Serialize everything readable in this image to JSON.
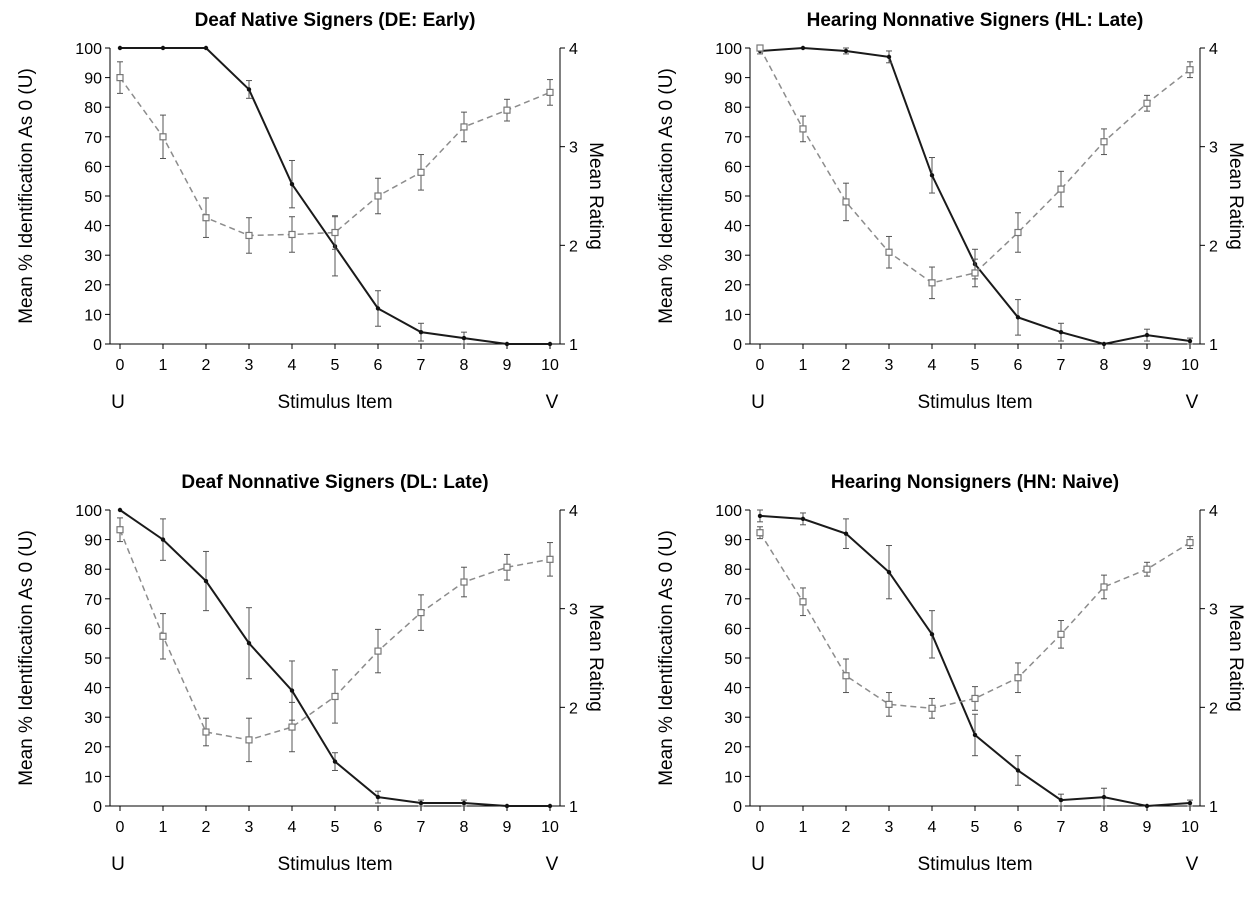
{
  "chart_data": [
    {
      "type": "line",
      "title": "Deaf Native Signers (DE: Early)",
      "xlabel": "Stimulus Item",
      "ylabel": "Mean % Identification As 0 (U)",
      "y2label": "Mean Rating",
      "x_end_labels": [
        "U",
        "V"
      ],
      "x": [
        0,
        1,
        2,
        3,
        4,
        5,
        6,
        7,
        8,
        9,
        10
      ],
      "ylim": [
        0,
        100
      ],
      "y2lim": [
        1,
        4
      ],
      "yticks": [
        0,
        10,
        20,
        30,
        40,
        50,
        60,
        70,
        80,
        90,
        100
      ],
      "y2ticks": [
        1,
        2,
        3,
        4
      ],
      "grid": false,
      "series": [
        {
          "style": "solid",
          "marker": "filled-circle",
          "axis": "left",
          "values": [
            100,
            100,
            100,
            86,
            54,
            33,
            12,
            4,
            2,
            0,
            0
          ],
          "err": [
            0,
            0,
            0,
            3,
            8,
            10,
            6,
            3,
            2,
            0,
            0
          ]
        },
        {
          "style": "dashed",
          "marker": "open-square",
          "axis": "right",
          "values": [
            3.7,
            3.1,
            2.28,
            2.1,
            2.11,
            2.13,
            2.5,
            2.74,
            3.2,
            3.37,
            3.55
          ],
          "err": [
            0.16,
            0.22,
            0.2,
            0.18,
            0.18,
            0.17,
            0.18,
            0.18,
            0.15,
            0.11,
            0.13
          ]
        }
      ]
    },
    {
      "type": "line",
      "title": "Hearing Nonnative Signers (HL: Late)",
      "xlabel": "Stimulus Item",
      "ylabel": "Mean % Identification As 0 (U)",
      "y2label": "Mean Rating",
      "x_end_labels": [
        "U",
        "V"
      ],
      "x": [
        0,
        1,
        2,
        3,
        4,
        5,
        6,
        7,
        8,
        9,
        10
      ],
      "ylim": [
        0,
        100
      ],
      "y2lim": [
        1,
        4
      ],
      "yticks": [
        0,
        10,
        20,
        30,
        40,
        50,
        60,
        70,
        80,
        90,
        100
      ],
      "y2ticks": [
        1,
        2,
        3,
        4
      ],
      "grid": false,
      "series": [
        {
          "style": "solid",
          "marker": "filled-circle",
          "axis": "left",
          "values": [
            99,
            100,
            99,
            97,
            57,
            27,
            9,
            4,
            0,
            3,
            1
          ],
          "err": [
            1,
            0,
            1,
            2,
            6,
            5,
            6,
            3,
            0,
            2,
            1
          ]
        },
        {
          "style": "dashed",
          "marker": "open-square",
          "axis": "right",
          "values": [
            4.0,
            3.18,
            2.44,
            1.93,
            1.62,
            1.72,
            2.13,
            2.57,
            3.05,
            3.44,
            3.78
          ],
          "err": [
            0.03,
            0.13,
            0.19,
            0.16,
            0.16,
            0.14,
            0.2,
            0.18,
            0.13,
            0.08,
            0.08
          ]
        }
      ]
    },
    {
      "type": "line",
      "title": "Deaf Nonnative Signers (DL: Late)",
      "xlabel": "Stimulus Item",
      "ylabel": "Mean % Identification As 0 (U)",
      "y2label": "Mean Rating",
      "x_end_labels": [
        "U",
        "V"
      ],
      "x": [
        0,
        1,
        2,
        3,
        4,
        5,
        6,
        7,
        8,
        9,
        10
      ],
      "ylim": [
        0,
        100
      ],
      "y2lim": [
        1,
        4
      ],
      "yticks": [
        0,
        10,
        20,
        30,
        40,
        50,
        60,
        70,
        80,
        90,
        100
      ],
      "y2ticks": [
        1,
        2,
        3,
        4
      ],
      "grid": false,
      "series": [
        {
          "style": "solid",
          "marker": "filled-circle",
          "axis": "left",
          "values": [
            100,
            90,
            76,
            55,
            39,
            15,
            3,
            1,
            1,
            0,
            0
          ],
          "err": [
            0,
            7,
            10,
            12,
            10,
            3,
            2,
            1,
            1,
            0,
            0
          ]
        },
        {
          "style": "dashed",
          "marker": "open-square",
          "axis": "right",
          "values": [
            3.8,
            2.72,
            1.75,
            1.67,
            1.8,
            2.11,
            2.57,
            2.96,
            3.27,
            3.42,
            3.5
          ],
          "err": [
            0.12,
            0.23,
            0.14,
            0.22,
            0.25,
            0.27,
            0.22,
            0.18,
            0.15,
            0.13,
            0.17
          ]
        }
      ]
    },
    {
      "type": "line",
      "title": "Hearing Nonsigners (HN: Naive)",
      "xlabel": "Stimulus Item",
      "ylabel": "Mean % Identification As 0 (U)",
      "y2label": "Mean Rating",
      "x_end_labels": [
        "U",
        "V"
      ],
      "x": [
        0,
        1,
        2,
        3,
        4,
        5,
        6,
        7,
        8,
        9,
        10
      ],
      "ylim": [
        0,
        100
      ],
      "y2lim": [
        1,
        4
      ],
      "yticks": [
        0,
        10,
        20,
        30,
        40,
        50,
        60,
        70,
        80,
        90,
        100
      ],
      "y2ticks": [
        1,
        2,
        3,
        4
      ],
      "grid": false,
      "series": [
        {
          "style": "solid",
          "marker": "filled-circle",
          "axis": "left",
          "values": [
            98,
            97,
            92,
            79,
            58,
            24,
            12,
            2,
            3,
            0,
            1
          ],
          "err": [
            2,
            2,
            5,
            9,
            8,
            7,
            5,
            2,
            3,
            0,
            1
          ]
        },
        {
          "style": "dashed",
          "marker": "open-square",
          "axis": "right",
          "values": [
            3.77,
            3.07,
            2.32,
            2.03,
            1.99,
            2.09,
            2.3,
            2.74,
            3.22,
            3.4,
            3.67
          ],
          "err": [
            0.06,
            0.14,
            0.17,
            0.12,
            0.1,
            0.12,
            0.15,
            0.14,
            0.12,
            0.07,
            0.06
          ]
        }
      ]
    }
  ]
}
